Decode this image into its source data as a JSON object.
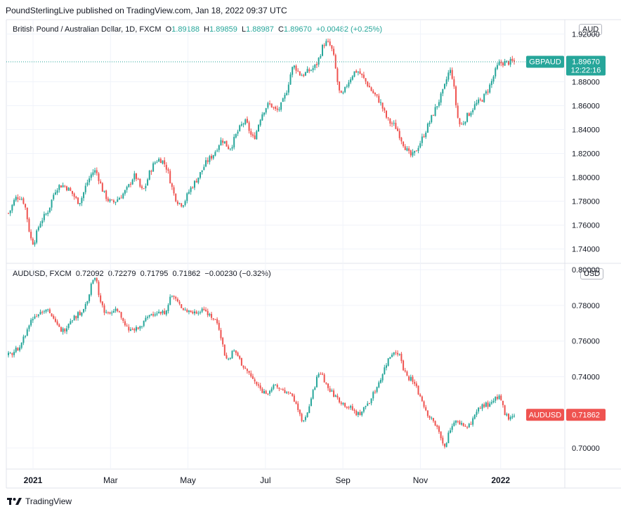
{
  "header": {
    "publisher": "PoundSterlingLive published on TradingView.com, Jan 18, 2022 09:37 UTC"
  },
  "footer": {
    "brand": "TradingView"
  },
  "colors": {
    "up": "#26a69a",
    "down": "#ef5350",
    "grid": "#f0f3fa",
    "axis": "#e0e3eb"
  },
  "chart_data": [
    {
      "type": "line",
      "panel": "top",
      "symbol_title": "British Pound / Australian Dollar, 1D, FXCM",
      "ohlc": {
        "o_label": "O",
        "o": "1.89188",
        "h_label": "H",
        "h": "1.89859",
        "l_label": "L",
        "l": "1.88987",
        "c_label": "C",
        "c": "1.89670",
        "change": "+0.00482 (+0.25%)"
      },
      "unit": "AUD",
      "yticks": [
        "1.92000",
        "1.88000",
        "1.86000",
        "1.84000",
        "1.82000",
        "1.80000",
        "1.78000",
        "1.76000",
        "1.74000"
      ],
      "ylim": [
        1.728,
        1.932
      ],
      "price_label": "GBPAUD",
      "price_value": "1.89670",
      "countdown": "12:22:16",
      "last": 1.8967,
      "series": [
        {
          "values": [
            1.77,
            1.783,
            1.778,
            1.746,
            1.762,
            1.772,
            1.79,
            1.793,
            1.787,
            1.78,
            1.796,
            1.805,
            1.788,
            1.779,
            1.783,
            1.79,
            1.801,
            1.789,
            1.806,
            1.815,
            1.808,
            1.785,
            1.778,
            1.79,
            1.8,
            1.812,
            1.82,
            1.831,
            1.825,
            1.838,
            1.846,
            1.833,
            1.852,
            1.861,
            1.856,
            1.868,
            1.892,
            1.886,
            1.889,
            1.895,
            1.912,
            1.905,
            1.869,
            1.88,
            1.889,
            1.882,
            1.872,
            1.863,
            1.848,
            1.842,
            1.828,
            1.818,
            1.828,
            1.842,
            1.857,
            1.872,
            1.888,
            1.846,
            1.851,
            1.86,
            1.866,
            1.878,
            1.894,
            1.896,
            1.8967
          ]
        }
      ]
    },
    {
      "type": "line",
      "panel": "bottom",
      "symbol_title": "AUDUSD, FXCM",
      "ohlc": {
        "o": "0.72092",
        "h": "0.72279",
        "l": "0.71795",
        "c": "0.71862",
        "change": "−0.00230 (−0.32%)"
      },
      "unit": "USD",
      "yticks": [
        "0.80000",
        "0.78000",
        "0.76000",
        "0.74000",
        "0.70000"
      ],
      "ylim": [
        0.6882,
        0.8036
      ],
      "price_label": "AUDUSD",
      "price_value": "0.71862",
      "last": 0.71862,
      "series": [
        {
          "values": [
            0.752,
            0.755,
            0.762,
            0.772,
            0.776,
            0.778,
            0.77,
            0.766,
            0.772,
            0.775,
            0.781,
            0.796,
            0.78,
            0.775,
            0.778,
            0.768,
            0.766,
            0.768,
            0.774,
            0.776,
            0.776,
            0.785,
            0.78,
            0.777,
            0.776,
            0.778,
            0.774,
            0.768,
            0.75,
            0.754,
            0.747,
            0.741,
            0.735,
            0.731,
            0.734,
            0.733,
            0.73,
            0.725,
            0.715,
            0.729,
            0.742,
            0.734,
            0.729,
            0.725,
            0.722,
            0.719,
            0.724,
            0.731,
            0.741,
            0.751,
            0.754,
            0.742,
            0.737,
            0.728,
            0.718,
            0.712,
            0.702,
            0.713,
            0.714,
            0.712,
            0.719,
            0.724,
            0.724,
            0.729,
            0.718,
            0.71862
          ]
        }
      ]
    }
  ],
  "x_axis": {
    "ticks": [
      "2021",
      "Mar",
      "May",
      "Jul",
      "Sep",
      "Nov",
      "2022"
    ]
  }
}
